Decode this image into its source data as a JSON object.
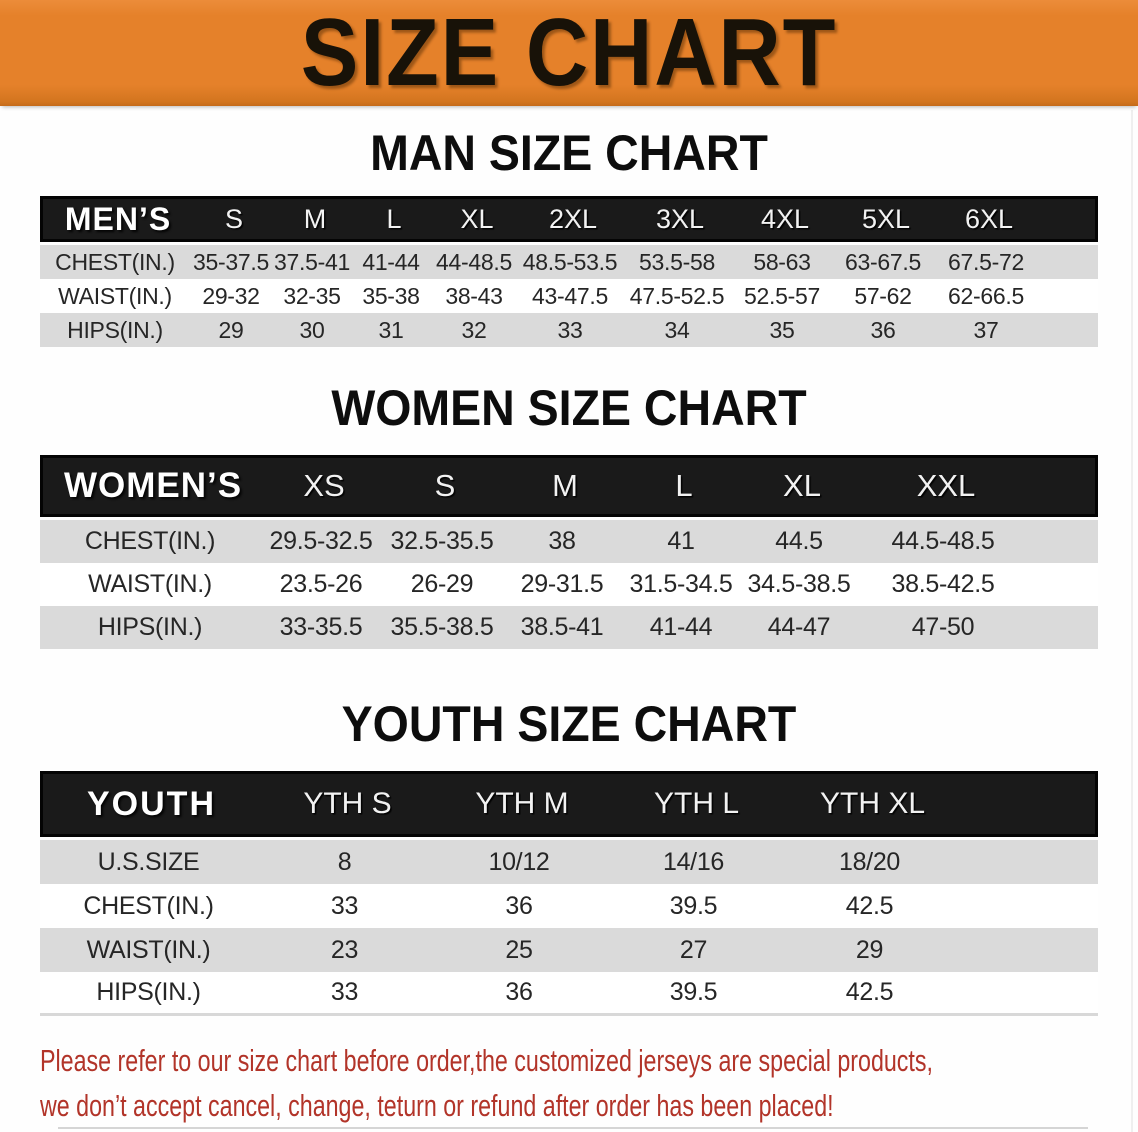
{
  "banner": {
    "title": "SIZE CHART"
  },
  "colors": {
    "banner_bg": "#e5812a",
    "header_bar": "#1a1a1a",
    "row_gray": "#dadada",
    "row_white": "#ffffff",
    "note_red": "#b23429"
  },
  "sections": [
    {
      "id": "men",
      "title": "MAN SIZE CHART",
      "group_label": "MEN’S",
      "columns": [
        "S",
        "M",
        "L",
        "XL",
        "2XL",
        "3XL",
        "4XL",
        "5XL",
        "6XL"
      ],
      "rows": [
        {
          "label": "CHEST(IN.)",
          "values": [
            "35-37.5",
            "37.5-41",
            "41-44",
            "44-48.5",
            "48.5-53.5",
            "53.5-58",
            "58-63",
            "63-67.5",
            "67.5-72"
          ]
        },
        {
          "label": "WAIST(IN.)",
          "values": [
            "29-32",
            "32-35",
            "35-38",
            "38-43",
            "43-47.5",
            "47.5-52.5",
            "52.5-57",
            "57-62",
            "62-66.5"
          ]
        },
        {
          "label": "HIPS(IN.)",
          "values": [
            "29",
            "30",
            "31",
            "32",
            "33",
            "34",
            "35",
            "36",
            "37"
          ]
        }
      ]
    },
    {
      "id": "women",
      "title": "WOMEN SIZE CHART",
      "group_label": "WOMEN’S",
      "columns": [
        "XS",
        "S",
        "M",
        "L",
        "XL",
        "XXL"
      ],
      "rows": [
        {
          "label": "CHEST(IN.)",
          "values": [
            "29.5-32.5",
            "32.5-35.5",
            "38",
            "41",
            "44.5",
            "44.5-48.5"
          ]
        },
        {
          "label": "WAIST(IN.)",
          "values": [
            "23.5-26",
            "26-29",
            "29-31.5",
            "31.5-34.5",
            "34.5-38.5",
            "38.5-42.5"
          ]
        },
        {
          "label": "HIPS(IN.)",
          "values": [
            "33-35.5",
            "35.5-38.5",
            "38.5-41",
            "41-44",
            "44-47",
            "47-50"
          ]
        }
      ]
    },
    {
      "id": "youth",
      "title": "YOUTH SIZE CHART",
      "group_label": "YOUTH",
      "columns": [
        "YTH S",
        "YTH M",
        "YTH L",
        "YTH XL"
      ],
      "rows": [
        {
          "label": "U.S.SIZE",
          "values": [
            "8",
            "10/12",
            "14/16",
            "18/20"
          ]
        },
        {
          "label": "CHEST(IN.)",
          "values": [
            "33",
            "36",
            "39.5",
            "42.5"
          ]
        },
        {
          "label": "WAIST(IN.)",
          "values": [
            "23",
            "25",
            "27",
            "29"
          ]
        },
        {
          "label": "HIPS(IN.)",
          "values": [
            "33",
            "36",
            "39.5",
            "42.5"
          ]
        }
      ]
    }
  ],
  "footnote": {
    "line1": "Please refer to our size chart before order,the customized jerseys are special products,",
    "line2": "we don’t accept cancel, change, teturn or refund after order has been placed!"
  }
}
